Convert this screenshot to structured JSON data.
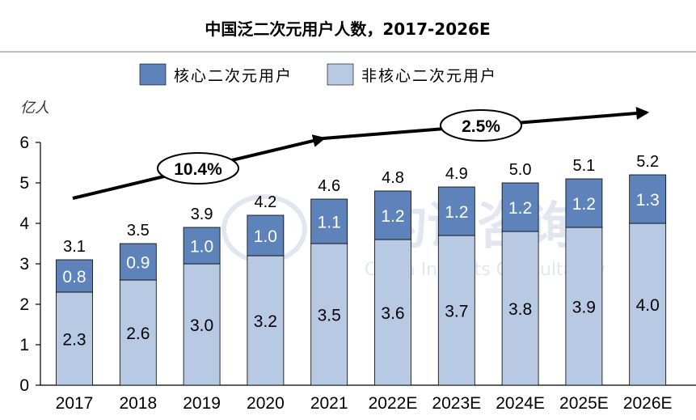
{
  "chart_data": {
    "type": "bar",
    "stacked": true,
    "title": "中国泛二次元用户人数，2017-2026E",
    "ylabel": "亿人",
    "ylim": [
      0,
      6
    ],
    "yticks": [
      "0",
      "1",
      "2",
      "3",
      "4",
      "5",
      "6"
    ],
    "categories": [
      "2017",
      "2018",
      "2019",
      "2020",
      "2021",
      "2022E",
      "2023E",
      "2024E",
      "2025E",
      "2026E"
    ],
    "totals": [
      3.1,
      3.5,
      3.9,
      4.2,
      4.6,
      4.8,
      4.9,
      5.0,
      5.1,
      5.2
    ],
    "total_labels": [
      "3.1",
      "3.5",
      "3.9",
      "4.2",
      "4.6",
      "4.8",
      "4.9",
      "5.0",
      "5.1",
      "5.2"
    ],
    "series": [
      {
        "name": "非核心二次元用户",
        "color": "#b8c9e4",
        "values": [
          2.3,
          2.6,
          3.0,
          3.2,
          3.5,
          3.6,
          3.7,
          3.8,
          3.9,
          4.0
        ],
        "labels": [
          "2.3",
          "2.6",
          "3.0",
          "3.2",
          "3.5",
          "3.6",
          "3.7",
          "3.8",
          "3.9",
          "4.0"
        ]
      },
      {
        "name": "核心二次元用户",
        "color": "#5d83ba",
        "values": [
          0.8,
          0.9,
          1.0,
          1.0,
          1.1,
          1.2,
          1.2,
          1.2,
          1.2,
          1.3
        ],
        "labels": [
          "0.8",
          "0.9",
          "1.0",
          "1.0",
          "1.1",
          "1.2",
          "1.2",
          "1.2",
          "1.2",
          "1.3"
        ]
      }
    ],
    "legend": [
      {
        "name": "核心二次元用户",
        "color": "#5d83ba"
      },
      {
        "name": "非核心二次元用户",
        "color": "#b8c9e4"
      }
    ],
    "legend_position": "top",
    "grid": false,
    "annotations": [
      {
        "text": "10.4%",
        "from": "2017",
        "to": "2021"
      },
      {
        "text": "2.5%",
        "from": "2021",
        "to": "2026E"
      }
    ],
    "watermark": {
      "cn": "灼识咨询",
      "en": "China Insights Consultancy"
    }
  }
}
